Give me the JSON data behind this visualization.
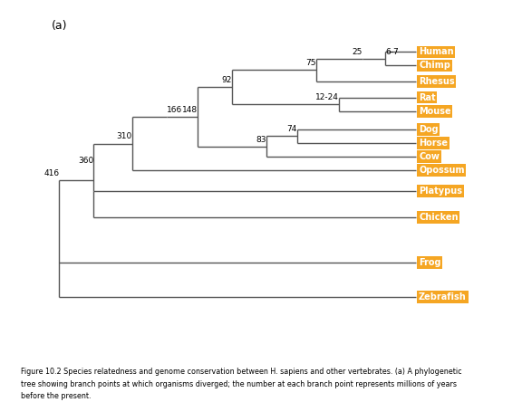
{
  "title": "(a)",
  "species": [
    "Human",
    "Chimp",
    "Rhesus",
    "Rat",
    "Mouse",
    "Dog",
    "Horse",
    "Cow",
    "Opossum",
    "Platypus",
    "Chicken",
    "Frog",
    "Zebrafish"
  ],
  "node_labels": {
    "25": [
      8.3,
      "human_chimp_mid"
    ],
    "6-7": [
      9.1,
      "hc_node"
    ],
    "75": [
      7.2,
      "primate_mid"
    ],
    "12-24": [
      7.8,
      "rodent_mid"
    ],
    "92": [
      5.5,
      "euarch_mid"
    ],
    "74": [
      6.7,
      "dog_horse_mid"
    ],
    "148": [
      4.4,
      "laur_mid"
    ],
    "166": [
      3.7,
      "placental_mid"
    ],
    "83": [
      6.0,
      "ungulate_mid"
    ],
    "310": [
      2.8,
      "therian_mid"
    ],
    "360": [
      1.8,
      "mammal_mid"
    ],
    "416": [
      0.8,
      "amniote_mid"
    ]
  },
  "label_box_color": "#F5A623",
  "label_text_color": "#FFFFFF",
  "line_color": "#555555",
  "background_color": "#FFFFFF",
  "caption_bold": "Figure 10.2 Species relatedness and genome conservation between H. sapiens and other vertebrates.",
  "caption_bold_italic": " (a) ",
  "caption_normal": "A phylogenetic tree showing branch points at which organisms diverged; the number at each branch point represents millions of years before the present.",
  "figsize": [
    5.76,
    4.44
  ],
  "dpi": 100
}
